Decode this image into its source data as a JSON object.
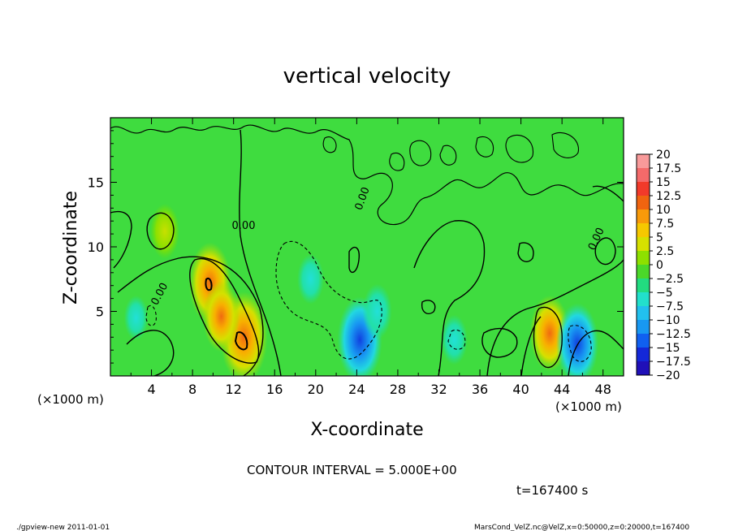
{
  "chart_data": {
    "type": "heatmap",
    "title": "vertical velocity",
    "xlabel": "X-coordinate",
    "ylabel": "Z-coordinate",
    "x_unit_left": "(×1000 m)",
    "x_unit_right": "(×1000 m)",
    "xlim": [
      0,
      50
    ],
    "ylim": [
      0,
      20
    ],
    "x_ticks": [
      "4",
      "8",
      "12",
      "16",
      "20",
      "24",
      "28",
      "32",
      "36",
      "40",
      "44",
      "48"
    ],
    "x_tick_values": [
      4,
      8,
      12,
      16,
      20,
      24,
      28,
      32,
      36,
      40,
      44,
      48
    ],
    "y_ticks": [
      "5",
      "10",
      "15"
    ],
    "y_tick_values": [
      5,
      10,
      15
    ],
    "colorbar": {
      "labels": [
        "20",
        "17.5",
        "15",
        "12.5",
        "10",
        "7.5",
        "5",
        "2.5",
        "0",
        "−2.5",
        "−5",
        "−7.5",
        "−10",
        "−12.5",
        "−15",
        "−17.5",
        "−20"
      ],
      "colors": [
        "#f89a9a",
        "#f46a6a",
        "#f23a2a",
        "#f06410",
        "#f89a0a",
        "#f6c800",
        "#d6e000",
        "#8ee000",
        "#4bd82a",
        "#22dc80",
        "#22e0cc",
        "#22c0ee",
        "#1898f2",
        "#1060f0",
        "#1428d8",
        "#2010b8",
        "#6010b0"
      ]
    },
    "contour_labels": [
      "0.00",
      "0.00",
      "0.00",
      "0.00"
    ],
    "features": [
      {
        "x": 13.0,
        "z": 3.0,
        "value": 12
      },
      {
        "x": 9.7,
        "z": 7.2,
        "value": 10
      },
      {
        "x": 10.8,
        "z": 4.6,
        "value": 8
      },
      {
        "x": 42.8,
        "z": 3.3,
        "value": 9
      },
      {
        "x": 5.3,
        "z": 11.2,
        "value": 5
      },
      {
        "x": 24.3,
        "z": 2.8,
        "value": -11
      },
      {
        "x": 45.5,
        "z": 2.5,
        "value": -10
      },
      {
        "x": 19.5,
        "z": 7.5,
        "value": -4
      },
      {
        "x": 26.0,
        "z": 5.0,
        "value": -5
      },
      {
        "x": 33.5,
        "z": 2.8,
        "value": -4
      },
      {
        "x": 2.5,
        "z": 4.5,
        "value": -3
      }
    ]
  },
  "contour_interval": "CONTOUR INTERVAL = 5.000E+00",
  "time_label": "t=167400 s",
  "footer_left": "./gpview-new  2011-01-01",
  "footer_right": "MarsCond_VelZ.nc@VelZ,x=0:50000,z=0:20000,t=167400",
  "colors": {
    "background_field": "#3fdc3f",
    "contour_line": "#000000"
  }
}
